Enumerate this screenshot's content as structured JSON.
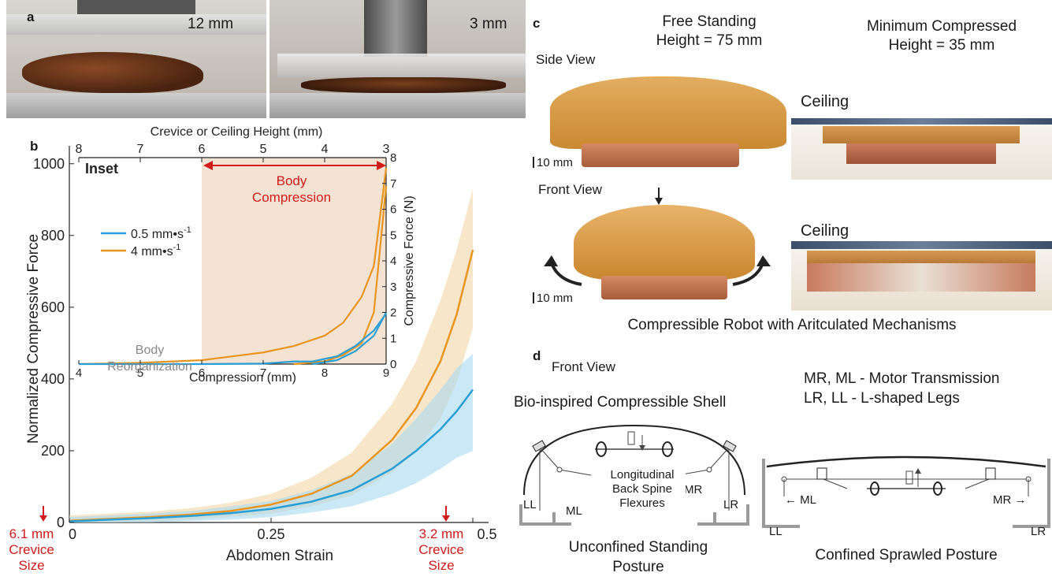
{
  "panel_a": {
    "label": "a",
    "left_height": "12 mm",
    "right_height": "3 mm"
  },
  "panel_b": {
    "label": "b",
    "inset_label": "Inset",
    "body_compression_label": "Body\nCompression",
    "body_reorg_label": "Body\nReorganization",
    "bottom_markers": [
      {
        "line1": "6.1 mm",
        "line2": "Crevice",
        "line3": "Size"
      },
      {
        "line1": "3.2 mm",
        "line2": "Crevice",
        "line3": "Size"
      }
    ]
  },
  "chart_data": [
    {
      "type": "line",
      "xlabel": "Abdomen Strain",
      "ylabel": "Normalized Compressive Force",
      "xlim": [
        0,
        0.5
      ],
      "ylim": [
        0,
        1050
      ],
      "x_ticks": [
        "0",
        "0.25",
        "0.5"
      ],
      "y_ticks": [
        "0",
        "200",
        "400",
        "600",
        "800",
        "1000"
      ],
      "series": [
        {
          "color": "#e8951f",
          "x": [
            0,
            0.05,
            0.1,
            0.15,
            0.2,
            0.25,
            0.3,
            0.35,
            0.4,
            0.43,
            0.46,
            0.48,
            0.5
          ],
          "values": [
            5,
            10,
            15,
            22,
            32,
            50,
            80,
            130,
            230,
            320,
            450,
            580,
            760
          ],
          "band_upper": [
            20,
            25,
            30,
            40,
            55,
            80,
            125,
            195,
            330,
            450,
            620,
            760,
            930
          ],
          "band_lower": [
            0,
            0,
            2,
            8,
            15,
            25,
            45,
            75,
            140,
            200,
            290,
            390,
            540
          ]
        },
        {
          "color": "#2a9fd6",
          "x": [
            0,
            0.05,
            0.1,
            0.15,
            0.2,
            0.25,
            0.3,
            0.35,
            0.4,
            0.43,
            0.46,
            0.48,
            0.5
          ],
          "values": [
            3,
            8,
            12,
            18,
            26,
            38,
            58,
            90,
            150,
            200,
            260,
            310,
            370
          ],
          "band_upper": [
            15,
            20,
            25,
            32,
            45,
            60,
            90,
            135,
            220,
            290,
            370,
            430,
            470
          ],
          "band_lower": [
            0,
            0,
            0,
            4,
            8,
            15,
            28,
            45,
            80,
            110,
            150,
            180,
            200
          ]
        }
      ]
    },
    {
      "type": "line",
      "xlabel": "Compression (mm)",
      "x2label": "Crevice or Ceiling Height (mm)",
      "ylabel": "Compressive Force (N)",
      "xlim": [
        4,
        9
      ],
      "ylim": [
        0,
        8
      ],
      "x_ticks": [
        "4",
        "5",
        "6",
        "7",
        "8",
        "9"
      ],
      "x2_ticks": [
        "8",
        "7",
        "6",
        "5",
        "4",
        "3"
      ],
      "y_ticks": [
        "0",
        "1",
        "2",
        "3",
        "4",
        "5",
        "6",
        "7",
        "8"
      ],
      "shaded_region": [
        6,
        9
      ],
      "legend": [
        {
          "label": "0.5 mm•s",
          "sup": "-1",
          "color": "#2a9fd6"
        },
        {
          "label": "4 mm•s",
          "sup": "-1",
          "color": "#e8951f"
        }
      ],
      "series": [
        {
          "color": "#e8951f",
          "x": [
            4,
            5,
            6,
            6.5,
            7,
            7.5,
            8,
            8.3,
            8.6,
            8.8,
            9
          ],
          "values": [
            0,
            0.05,
            0.15,
            0.3,
            0.45,
            0.7,
            1.1,
            1.6,
            2.6,
            3.8,
            7.6
          ]
        },
        {
          "color": "#e8951f",
          "x": [
            7.5,
            8,
            8.3,
            8.6,
            8.8,
            9
          ],
          "values": [
            0,
            0.1,
            0.35,
            0.8,
            2.0,
            6.9
          ]
        },
        {
          "color": "#2a9fd6",
          "x": [
            4,
            6,
            7,
            7.5,
            7.8,
            8.2,
            8.5,
            8.8,
            9
          ],
          "values": [
            0,
            0,
            0.02,
            0.1,
            0.1,
            0.3,
            0.7,
            1.3,
            1.95
          ]
        },
        {
          "color": "#2a9fd6",
          "x": [
            7.8,
            8.2,
            8.5,
            8.8,
            9
          ],
          "values": [
            0,
            0.15,
            0.5,
            1.1,
            2.0
          ]
        }
      ]
    }
  ],
  "panel_c": {
    "label": "c",
    "free_standing_line1": "Free Standing",
    "free_standing_line2": "Height = 75 mm",
    "min_compressed_line1": "Minimum Compressed",
    "min_compressed_line2": "Height = 35 mm",
    "side_view": "Side View",
    "front_view": "Front View",
    "ceiling_1": "Ceiling",
    "ceiling_2": "Ceiling",
    "scale_1": "10 mm",
    "scale_2": "10 mm",
    "caption": "Compressible Robot with Aritculated Mechanisms"
  },
  "panel_d": {
    "label": "d",
    "front_view": "Front View",
    "legend_line1": "MR, ML - Motor Transmission",
    "legend_line2": "LR, LL - L-shaped Legs",
    "shell_title": "Bio-inspired Compressible Shell",
    "spine_line1": "Longitudinal",
    "spine_line2": "Back Spine",
    "spine_line3": "Flexures",
    "ll": "LL",
    "ml": "ML",
    "mr": "MR",
    "lr": "LR",
    "ll2": "LL",
    "ml2": "← ML",
    "mr2": "MR →",
    "lr2": "LR",
    "caption_left_line1": "Unconfined Standing",
    "caption_left_line2": "Posture",
    "caption_right": "Confined Sprawled Posture"
  }
}
